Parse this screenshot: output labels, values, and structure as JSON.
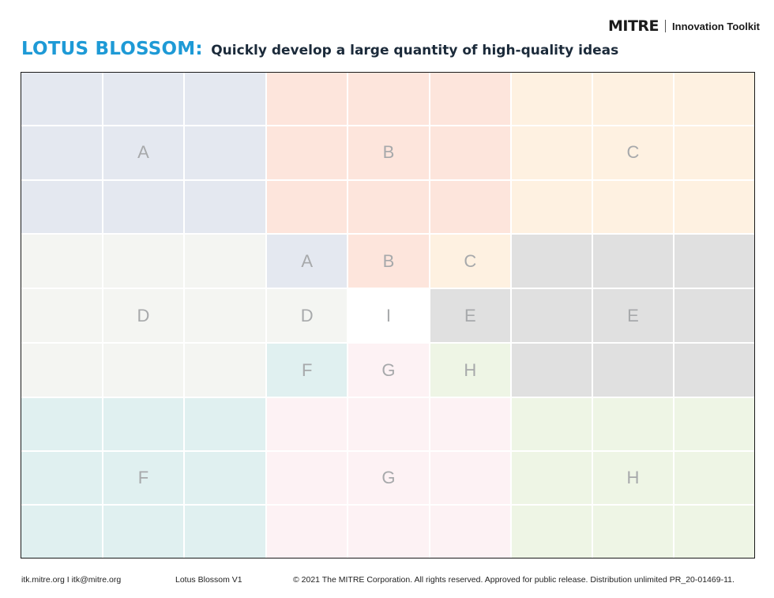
{
  "header": {
    "brand": "MITRE",
    "toolkit": "Innovation Toolkit",
    "title": "LOTUS BLOSSOM:",
    "subtitle": "Quickly develop a large quantity of high-quality ideas"
  },
  "colors": {
    "title_blue": "#1e9ad6",
    "A": "#e4e8f0",
    "B": "#fde5dc",
    "C": "#fef1e1",
    "D": "#f4f5f2",
    "E": "#e0e0e0",
    "F": "#e0f0f0",
    "G": "#fdf2f4",
    "H": "#eef5e5"
  },
  "blocks": [
    {
      "id": "A",
      "center": "A"
    },
    {
      "id": "B",
      "center": "B"
    },
    {
      "id": "C",
      "center": "C"
    },
    {
      "id": "D",
      "center": "D"
    },
    {
      "id": "I",
      "center": "I"
    },
    {
      "id": "E",
      "center": "E"
    },
    {
      "id": "F",
      "center": "F"
    },
    {
      "id": "G",
      "center": "G"
    },
    {
      "id": "H",
      "center": "H"
    }
  ],
  "center_block": {
    "cells": [
      "A",
      "B",
      "C",
      "D",
      "I",
      "E",
      "F",
      "G",
      "H"
    ]
  },
  "footer": {
    "contact": "itk.mitre.org I itk@mitre.org",
    "version": "Lotus Blossom V1",
    "copyright": "© 2021 The MITRE Corporation. All rights reserved. Approved for public release. Distribution unlimited PR_20-01469-11."
  }
}
